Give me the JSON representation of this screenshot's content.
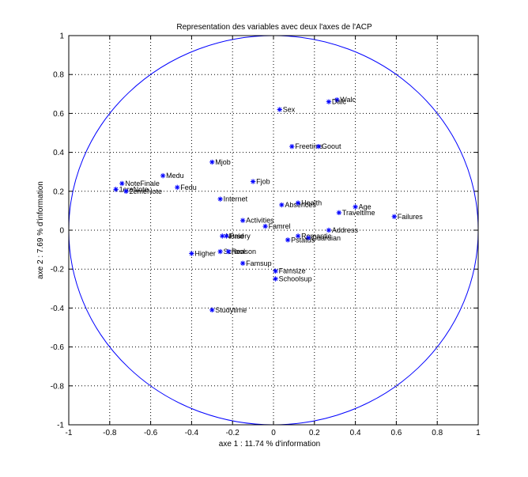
{
  "chart_data": {
    "type": "scatter",
    "title": "Representation des variables avec deux l'axes de l'ACP",
    "xlabel": "axe 1 : 11.74 % d'information",
    "ylabel": "axe 2 : 7.69 % d'information",
    "xlim": [
      -1,
      1
    ],
    "ylim": [
      -1,
      1
    ],
    "xticks": [
      -1,
      -0.8,
      -0.6,
      -0.4,
      -0.2,
      0,
      0.2,
      0.4,
      0.6,
      0.8,
      1
    ],
    "yticks": [
      -1,
      -0.8,
      -0.6,
      -0.4,
      -0.2,
      0,
      0.2,
      0.4,
      0.6,
      0.8,
      1
    ],
    "xtick_labels": [
      "-1",
      "-0.8",
      "-0.6",
      "-0.4",
      "-0.2",
      "0",
      "0.2",
      "0.4",
      "0.6",
      "0.8",
      "1"
    ],
    "ytick_labels": [
      "-1",
      "-0.8",
      "-0.6",
      "-0.4",
      "-0.2",
      "0",
      "0.2",
      "0.4",
      "0.6",
      "0.8",
      "1"
    ],
    "grid": true,
    "unit_circle": true,
    "colors": {
      "marker": "#0000ff",
      "circle": "#0000ff",
      "text": "#000000",
      "grid": "#000000"
    },
    "points": [
      {
        "label": "Sex",
        "x": 0.03,
        "y": 0.62
      },
      {
        "label": "Walc",
        "x": 0.31,
        "y": 0.67
      },
      {
        "label": "Dalc",
        "x": 0.27,
        "y": 0.66
      },
      {
        "label": "Freetime",
        "x": 0.09,
        "y": 0.43
      },
      {
        "label": "Goout",
        "x": 0.22,
        "y": 0.43
      },
      {
        "label": "Mjob",
        "x": -0.3,
        "y": 0.35
      },
      {
        "label": "Medu",
        "x": -0.54,
        "y": 0.28
      },
      {
        "label": "Fedu",
        "x": -0.47,
        "y": 0.22
      },
      {
        "label": "NoteFinale",
        "x": -0.74,
        "y": 0.24
      },
      {
        "label": "1ereNote",
        "x": -0.77,
        "y": 0.21
      },
      {
        "label": "2emeNote",
        "x": -0.72,
        "y": 0.2
      },
      {
        "label": "Fjob",
        "x": -0.1,
        "y": 0.25
      },
      {
        "label": "Internet",
        "x": -0.26,
        "y": 0.16
      },
      {
        "label": "Absences",
        "x": 0.04,
        "y": 0.13
      },
      {
        "label": "Health",
        "x": 0.12,
        "y": 0.14
      },
      {
        "label": "Age",
        "x": 0.4,
        "y": 0.12
      },
      {
        "label": "Traveltime",
        "x": 0.32,
        "y": 0.09
      },
      {
        "label": "Failures",
        "x": 0.59,
        "y": 0.07
      },
      {
        "label": "Activities",
        "x": -0.15,
        "y": 0.05
      },
      {
        "label": "Famrel",
        "x": -0.04,
        "y": 0.02
      },
      {
        "label": "Address",
        "x": 0.27,
        "y": 0
      },
      {
        "label": "Romantic",
        "x": 0.12,
        "y": -0.03
      },
      {
        "label": "Guardian",
        "x": 0.17,
        "y": -0.04
      },
      {
        "label": "Pstatus",
        "x": 0.07,
        "y": -0.05
      },
      {
        "label": "Nursery",
        "x": -0.25,
        "y": -0.03
      },
      {
        "label": "Paid",
        "x": -0.23,
        "y": -0.03
      },
      {
        "label": "School",
        "x": -0.26,
        "y": -0.11
      },
      {
        "label": "Reason",
        "x": -0.22,
        "y": -0.11
      },
      {
        "label": "Higher",
        "x": -0.4,
        "y": -0.12
      },
      {
        "label": "Famsup",
        "x": -0.15,
        "y": -0.17
      },
      {
        "label": "Famsize",
        "x": 0.01,
        "y": -0.21
      },
      {
        "label": "Schoolsup",
        "x": 0.01,
        "y": -0.25
      },
      {
        "label": "Studytime",
        "x": -0.3,
        "y": -0.41
      }
    ]
  }
}
